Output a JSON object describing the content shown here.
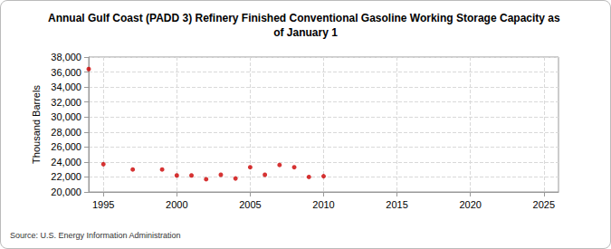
{
  "chart_data": {
    "type": "scatter",
    "title": "Annual Gulf Coast (PADD 3) Refinery Finished Conventional Gasoline Working Storage Capacity as of January 1",
    "y_label": "Thousand Barrels",
    "annotations": [
      "Source: U.S. Energy Information Administration"
    ],
    "x": [
      1994,
      1995,
      1997,
      1999,
      2000,
      2001,
      2002,
      2003,
      2004,
      2005,
      2006,
      2007,
      2008,
      2009,
      2010
    ],
    "values": [
      36400,
      23700,
      23000,
      23000,
      22200,
      22200,
      21700,
      22300,
      21800,
      23300,
      22300,
      23600,
      23300,
      22000,
      22100
    ],
    "color": "#cc0000",
    "marker": "circle",
    "xlim": [
      1994,
      2026
    ],
    "xticks": [
      1995,
      2000,
      2005,
      2010,
      2015,
      2020,
      2025
    ],
    "ylim": [
      20000,
      38000
    ],
    "yticks": [
      {
        "value": 20000,
        "label": "20,000"
      },
      {
        "value": 22000,
        "label": "22,000"
      },
      {
        "value": 24000,
        "label": "24,000"
      },
      {
        "value": 26000,
        "label": "26,000"
      },
      {
        "value": 28000,
        "label": "28,000"
      },
      {
        "value": 30000,
        "label": "30,000"
      },
      {
        "value": 32000,
        "label": "32,000"
      },
      {
        "value": 34000,
        "label": "34,000"
      },
      {
        "value": 36000,
        "label": "36,000"
      },
      {
        "value": 38000,
        "label": "38,000"
      }
    ],
    "grid": true
  }
}
